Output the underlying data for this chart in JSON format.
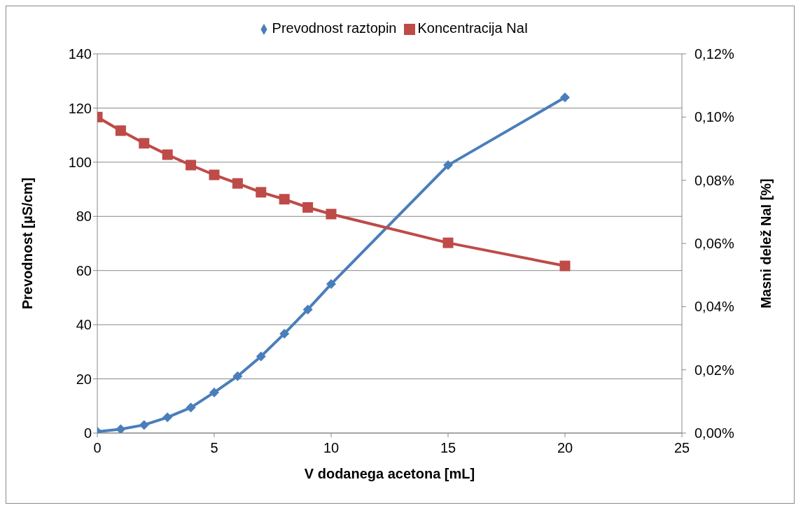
{
  "chart_data": {
    "type": "line",
    "xlabel": "V dodanega acetona [mL]",
    "ylabel": "Prevodnost [µS/cm]",
    "y2label": "Masni delež NaI [%]",
    "xlim": [
      0,
      25
    ],
    "xticks": [
      0,
      5,
      10,
      15,
      20,
      25
    ],
    "ylim": [
      0,
      140
    ],
    "yticks": [
      0,
      20,
      40,
      60,
      80,
      100,
      120,
      140
    ],
    "y2lim": [
      0,
      0.12
    ],
    "y2ticks": [
      {
        "value": 0,
        "label": "0,00%"
      },
      {
        "value": 0.02,
        "label": "0,02%"
      },
      {
        "value": 0.04,
        "label": "0,04%"
      },
      {
        "value": 0.06,
        "label": "0,06%"
      },
      {
        "value": 0.08,
        "label": "0,08%"
      },
      {
        "value": 0.1,
        "label": "0,10%"
      },
      {
        "value": 0.12,
        "label": "0,12%"
      }
    ],
    "x": [
      0,
      1,
      2,
      3,
      4,
      5,
      6,
      7,
      8,
      9,
      10,
      15,
      20
    ],
    "grid": "y",
    "legend": "top",
    "line_style": "solid",
    "series": [
      {
        "name": "Prevodnost raztopin",
        "color": "#4a7ebb",
        "marker": "diamond",
        "values": [
          0.5,
          1.4,
          3,
          5.8,
          9.4,
          15,
          21,
          28.3,
          36.7,
          45.6,
          55,
          98.9,
          123.9
        ]
      },
      {
        "name": "Koncentracija NaI",
        "color": "#be4b48",
        "marker": "square",
        "axis": "y2",
        "values": [
          0.1,
          0.0957,
          0.0917,
          0.0881,
          0.0848,
          0.0817,
          0.079,
          0.0762,
          0.074,
          0.0714,
          0.0693,
          0.0602,
          0.0529
        ]
      }
    ]
  }
}
